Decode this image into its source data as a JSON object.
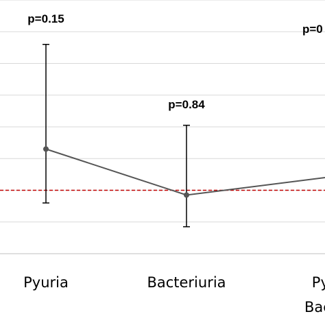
{
  "chart_data": {
    "type": "line",
    "title": "",
    "xlabel": "",
    "ylabel": "",
    "grid": true,
    "legend": "none",
    "categories": [
      "Pyuria",
      "Bacteriuria",
      "Pyuria + Bacteriuria"
    ],
    "category_labels_visible": [
      [
        "Pyuria"
      ],
      [
        "Bacteriuria"
      ],
      [
        "Pyu",
        "Bacte"
      ]
    ],
    "ylim": [
      0,
      8
    ],
    "reference_line": {
      "y": 2.0,
      "style": "dashed",
      "color": "#c00000"
    },
    "series": [
      {
        "values": [
          3.3,
          1.85,
          2.4
        ],
        "error_low": [
          1.6,
          0.85,
          null
        ],
        "error_high": [
          6.6,
          4.05,
          null
        ],
        "p_values": [
          "p=0.15",
          "p=0.84",
          "p=0"
        ]
      }
    ],
    "colors": {
      "line": "#555555",
      "errorbar": "#000000",
      "grid": "#d9d9d9",
      "reference": "#c00000"
    }
  }
}
